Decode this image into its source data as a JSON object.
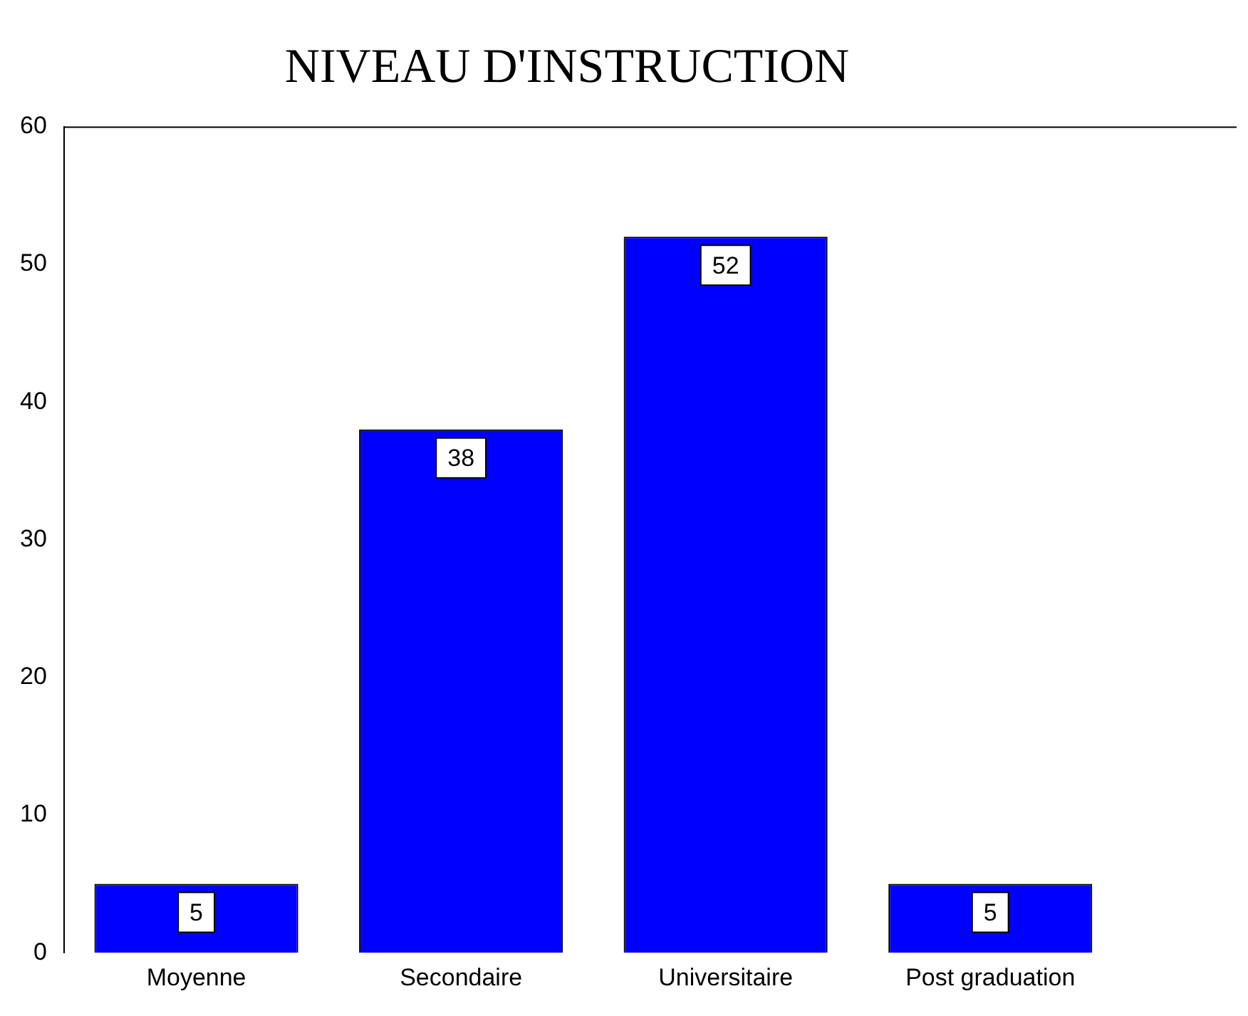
{
  "chart_data": {
    "type": "bar",
    "title": "NIVEAU D'INSTRUCTION",
    "categories": [
      "Moyenne",
      "Secondaire",
      "Universitaire",
      "Post graduation"
    ],
    "values": [
      5,
      38,
      52,
      5
    ],
    "color": "#0000ff",
    "ylim": [
      0,
      60
    ],
    "yticks": [
      0,
      10,
      20,
      30,
      40,
      50,
      60
    ],
    "grid": false,
    "legend": false,
    "data_labels": true
  }
}
